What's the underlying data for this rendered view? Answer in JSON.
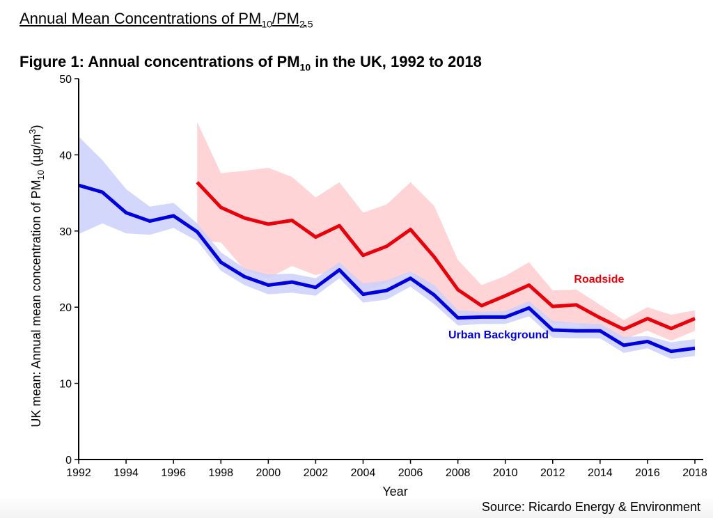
{
  "page": {
    "heading_main": "Annual Mean Concentrations of PM",
    "heading_sub1": "10",
    "heading_mid": "/PM",
    "heading_sub2": "2.5",
    "figure_title_pre": "Figure 1: Annual concentrations of PM",
    "figure_title_sub": "10",
    "figure_title_post": " in the UK, 1992 to 2018",
    "source": "Source: Ricardo Energy & Environment"
  },
  "chart_data": {
    "type": "line",
    "xlabel": "Year",
    "ylabel_parts": [
      "UK mean: Annual mean concentration of PM",
      "10",
      " (µg/m",
      "3",
      ")"
    ],
    "xlim": [
      1992,
      2018
    ],
    "ylim": [
      0,
      50
    ],
    "x_ticks": [
      1992,
      1994,
      1996,
      1998,
      2000,
      2002,
      2004,
      2006,
      2008,
      2010,
      2012,
      2014,
      2016,
      2018
    ],
    "y_ticks": [
      0,
      10,
      20,
      30,
      40,
      50
    ],
    "grid": false,
    "series": [
      {
        "name": "Roadside",
        "color": "#e8000b",
        "band_color": "#ffcccf",
        "x": [
          1997,
          1998,
          1999,
          2000,
          2001,
          2002,
          2003,
          2004,
          2005,
          2006,
          2007,
          2008,
          2009,
          2010,
          2011,
          2012,
          2013,
          2014,
          2015,
          2016,
          2017,
          2018
        ],
        "values": [
          36.4,
          33.1,
          31.7,
          30.9,
          31.4,
          29.2,
          30.7,
          26.8,
          28.0,
          30.2,
          26.6,
          22.3,
          20.2,
          21.5,
          22.9,
          20.1,
          20.3,
          18.6,
          17.1,
          18.5,
          17.2,
          18.5
        ],
        "upper": [
          44.3,
          37.6,
          37.9,
          38.3,
          37.1,
          34.4,
          36.4,
          32.4,
          33.5,
          36.4,
          33.3,
          26.2,
          22.9,
          24.1,
          25.9,
          22.2,
          22.3,
          20.3,
          18.3,
          20.0,
          19.0,
          19.6
        ],
        "lower": [
          28.8,
          28.5,
          24.9,
          23.8,
          25.4,
          24.2,
          25.0,
          22.0,
          23.2,
          24.6,
          20.4,
          18.5,
          18.3,
          18.5,
          19.9,
          17.9,
          17.9,
          16.5,
          15.8,
          16.9,
          15.6,
          16.9
        ]
      },
      {
        "name": "Urban Background",
        "color": "#0000dd",
        "band_color": "#cdd0fb",
        "x": [
          1992,
          1993,
          1994,
          1995,
          1996,
          1997,
          1998,
          1999,
          2000,
          2001,
          2002,
          2003,
          2004,
          2005,
          2006,
          2007,
          2008,
          2009,
          2010,
          2011,
          2012,
          2013,
          2014,
          2015,
          2016,
          2017,
          2018
        ],
        "values": [
          36.0,
          35.1,
          32.4,
          31.3,
          32.0,
          29.9,
          25.9,
          24.0,
          22.9,
          23.3,
          22.6,
          24.9,
          21.7,
          22.2,
          23.8,
          21.6,
          18.6,
          18.7,
          18.7,
          19.9,
          17.0,
          16.9,
          16.9,
          15.0,
          15.5,
          14.2,
          14.6
        ],
        "upper": [
          42.4,
          39.3,
          35.5,
          33.2,
          33.7,
          31.0,
          27.2,
          25.1,
          24.3,
          24.4,
          23.8,
          25.9,
          23.1,
          23.5,
          24.7,
          22.9,
          19.6,
          19.4,
          19.5,
          20.8,
          18.2,
          17.9,
          17.8,
          16.1,
          16.2,
          15.4,
          15.8
        ],
        "lower": [
          29.6,
          31.0,
          29.7,
          29.5,
          30.4,
          28.7,
          24.8,
          22.9,
          21.7,
          21.9,
          21.5,
          23.8,
          20.6,
          21.0,
          22.7,
          20.4,
          17.6,
          17.8,
          17.8,
          18.8,
          16.0,
          15.9,
          15.9,
          14.0,
          14.6,
          13.2,
          13.6
        ]
      }
    ],
    "annotations": [
      {
        "text": "Roadside",
        "series": "Roadside",
        "x": 2012.9,
        "y": 23.2
      },
      {
        "text": "Urban Background",
        "series": "Urban Background",
        "x": 2007.6,
        "y": 15.9
      }
    ]
  }
}
